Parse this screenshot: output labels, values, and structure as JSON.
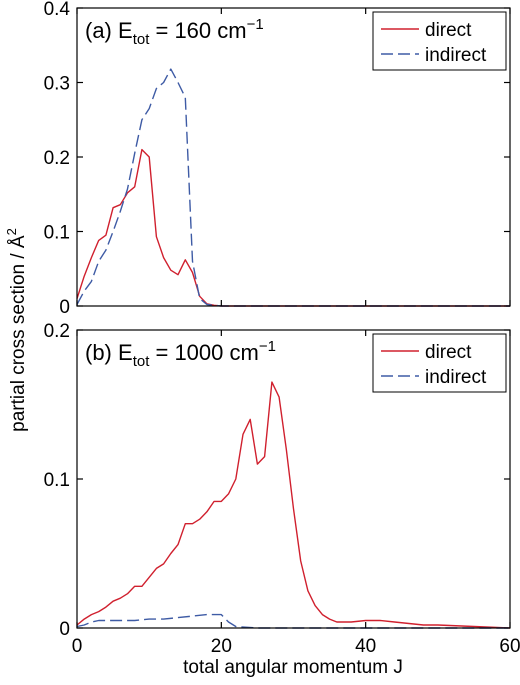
{
  "figure": {
    "ylabel_main": "partial cross section / Å",
    "ylabel_sup": "2",
    "xlabel": "total angular momentum J"
  },
  "chart_data": [
    {
      "type": "line",
      "panel_label": "(a)",
      "title_E": "E",
      "title_sub": "tot",
      "title_rest": " = 160 cm",
      "title_sup": "−1",
      "xlim": [
        0,
        60
      ],
      "ylim": [
        0,
        0.4
      ],
      "xticks": [
        0,
        20,
        40,
        60
      ],
      "yticks": [
        0,
        0.1,
        0.2,
        0.3,
        0.4
      ],
      "ytick_labels": [
        "0",
        "0.1",
        "0.2",
        "0.3",
        "0.4"
      ],
      "legend_position": "top-right",
      "series": [
        {
          "name": "direct",
          "color": "#d0202e",
          "dash": "solid",
          "x": [
            0,
            1,
            2,
            3,
            4,
            5,
            6,
            7,
            8,
            9,
            10,
            11,
            12,
            13,
            14,
            15,
            16,
            17,
            18,
            19,
            20,
            25,
            30,
            40,
            50,
            60
          ],
          "y": [
            0.01,
            0.04,
            0.065,
            0.088,
            0.095,
            0.132,
            0.136,
            0.152,
            0.16,
            0.21,
            0.2,
            0.093,
            0.065,
            0.048,
            0.042,
            0.062,
            0.045,
            0.013,
            0.003,
            0.001,
            0,
            0,
            0,
            0,
            0,
            0
          ]
        },
        {
          "name": "indirect",
          "color": "#3e5ba5",
          "dash": "dashed",
          "x": [
            0,
            1,
            2,
            3,
            4,
            5,
            6,
            7,
            8,
            9,
            10,
            11,
            12,
            13,
            14,
            15,
            16,
            17,
            18,
            19,
            20,
            25,
            30,
            40,
            50,
            60
          ],
          "y": [
            0.002,
            0.02,
            0.033,
            0.06,
            0.075,
            0.1,
            0.127,
            0.157,
            0.205,
            0.25,
            0.265,
            0.292,
            0.3,
            0.318,
            0.3,
            0.28,
            0.06,
            0.01,
            0.002,
            0.001,
            0,
            0,
            0,
            0,
            0,
            0
          ]
        }
      ]
    },
    {
      "type": "line",
      "panel_label": "(b)",
      "title_E": "E",
      "title_sub": "tot",
      "title_rest": " = 1000 cm",
      "title_sup": "−1",
      "xlim": [
        0,
        60
      ],
      "ylim": [
        0,
        0.2
      ],
      "xticks": [
        0,
        20,
        40,
        60
      ],
      "yticks": [
        0,
        0.1,
        0.2
      ],
      "ytick_labels": [
        "0",
        "0.1",
        "0.2"
      ],
      "legend_position": "top-right",
      "series": [
        {
          "name": "direct",
          "color": "#d0202e",
          "dash": "solid",
          "x": [
            0,
            1,
            2,
            3,
            4,
            5,
            6,
            7,
            8,
            9,
            10,
            11,
            12,
            13,
            14,
            15,
            16,
            17,
            18,
            19,
            20,
            21,
            22,
            23,
            24,
            25,
            26,
            27,
            28,
            29,
            30,
            31,
            32,
            33,
            34,
            35,
            36,
            38,
            40,
            42,
            44,
            46,
            48,
            50,
            55,
            60
          ],
          "y": [
            0.002,
            0.006,
            0.009,
            0.011,
            0.014,
            0.018,
            0.02,
            0.023,
            0.028,
            0.028,
            0.034,
            0.04,
            0.043,
            0.05,
            0.056,
            0.07,
            0.07,
            0.073,
            0.078,
            0.085,
            0.085,
            0.09,
            0.1,
            0.13,
            0.14,
            0.11,
            0.115,
            0.165,
            0.155,
            0.12,
            0.08,
            0.045,
            0.025,
            0.015,
            0.009,
            0.006,
            0.004,
            0.004,
            0.005,
            0.005,
            0.004,
            0.003,
            0.002,
            0.002,
            0.001,
            0
          ]
        },
        {
          "name": "indirect",
          "color": "#3e5ba5",
          "dash": "dashed",
          "x": [
            0,
            1,
            2,
            3,
            4,
            6,
            8,
            10,
            12,
            14,
            16,
            18,
            19,
            20,
            21,
            22,
            25,
            30,
            40,
            50,
            60
          ],
          "y": [
            0.001,
            0.002,
            0.004,
            0.005,
            0.005,
            0.005,
            0.005,
            0.006,
            0.006,
            0.007,
            0.008,
            0.009,
            0.009,
            0.009,
            0.004,
            0.001,
            0,
            0,
            0,
            0,
            0
          ]
        }
      ]
    }
  ]
}
